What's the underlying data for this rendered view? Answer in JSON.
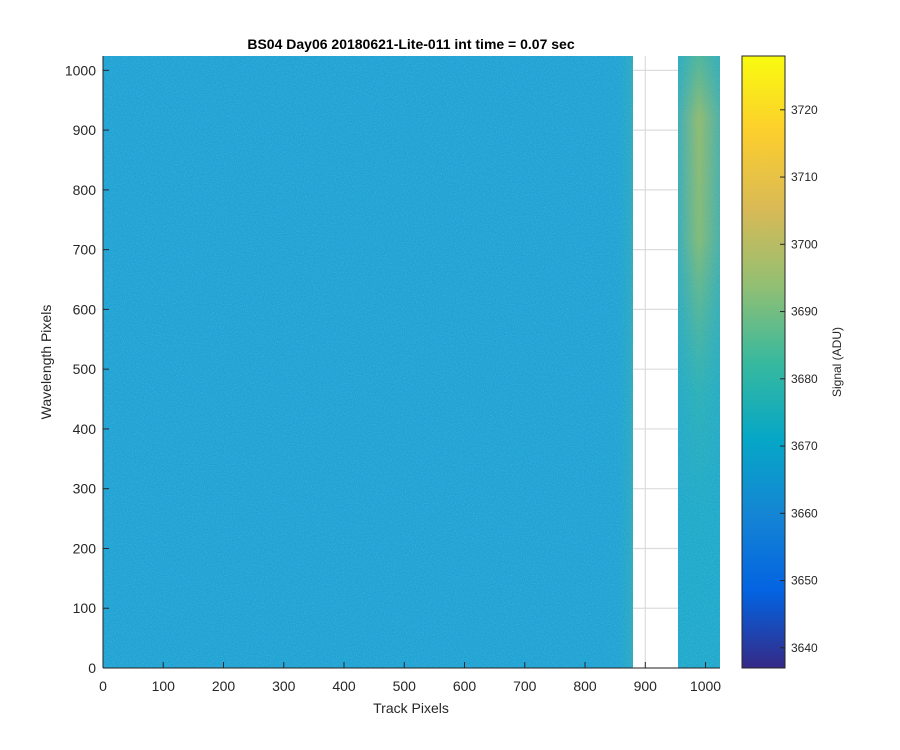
{
  "chart_data": {
    "type": "heatmap",
    "title": "BS04 Day06 20180621-Lite-011 int time = 0.07 sec",
    "xlabel": "Track Pixels",
    "ylabel": "Wavelength Pixels",
    "xlim": [
      0,
      1024
    ],
    "ylim": [
      0,
      1024
    ],
    "x_ticks": [
      0,
      100,
      200,
      300,
      400,
      500,
      600,
      700,
      800,
      900,
      1000
    ],
    "y_ticks": [
      0,
      100,
      200,
      300,
      400,
      500,
      600,
      700,
      800,
      900,
      1000
    ],
    "grid": true,
    "colormap": "parula",
    "colorbar": {
      "label": "Signal (ADU)",
      "range": [
        3637,
        3728
      ],
      "ticks": [
        3640,
        3650,
        3660,
        3670,
        3680,
        3690,
        3700,
        3710,
        3720
      ],
      "colors": [
        "#352a87",
        "#0363e1",
        "#1485d4",
        "#06a7c6",
        "#38b99e",
        "#92bf73",
        "#d9ba56",
        "#fcce2e",
        "#f9fb0e"
      ]
    },
    "regions": [
      {
        "x_range": [
          0,
          880
        ],
        "y_range": [
          0,
          1024
        ],
        "typical_signal": 3670,
        "description_value": "uniform background"
      },
      {
        "x_range": [
          880,
          955
        ],
        "y_range": [
          0,
          1024
        ],
        "typical_signal": null
      },
      {
        "x_range": [
          955,
          1024
        ],
        "y_range": [
          0,
          1024
        ],
        "typical_signal": 3675,
        "peak_signal": 3700,
        "peak_y_range": [
          650,
          950
        ]
      }
    ]
  }
}
